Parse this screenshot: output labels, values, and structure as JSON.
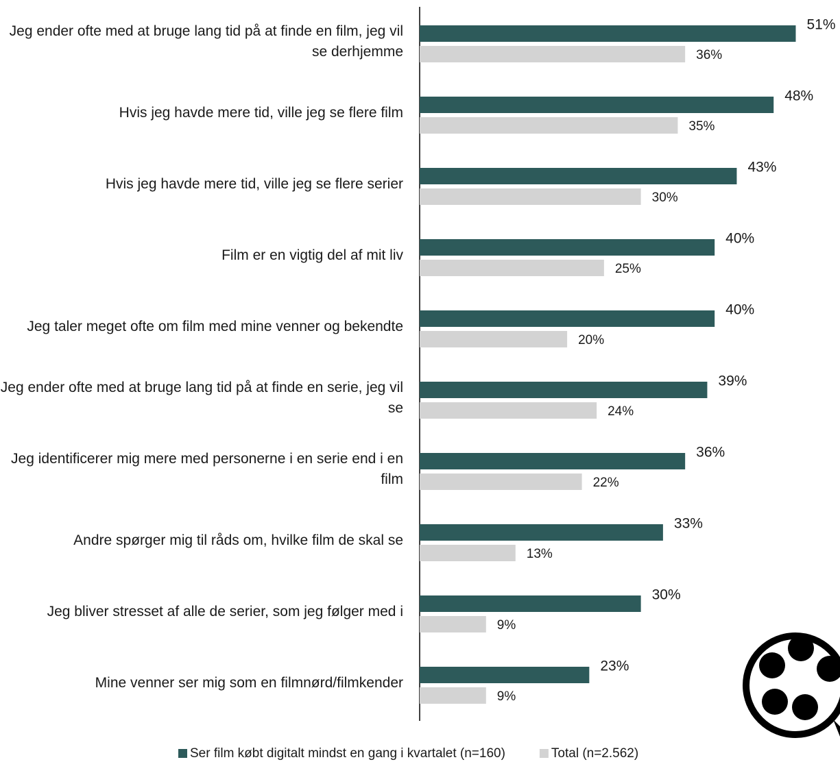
{
  "chart_data": {
    "type": "hbar",
    "categories": [
      "Jeg ender ofte med at bruge lang tid på at finde en film, jeg vil se derhjemme",
      "Hvis jeg havde mere tid, ville jeg se flere film",
      "Hvis jeg havde mere tid, ville jeg se flere serier",
      "Film er en vigtig del af mit liv",
      "Jeg taler meget ofte om film med mine venner og bekendte",
      "Jeg ender ofte med at bruge lang tid på at finde en serie, jeg vil se",
      "Jeg identificerer mig mere med personerne i en serie end i en film",
      "Andre spørger mig til råds om, hvilke film de skal se",
      "Jeg bliver stresset af alle de serier, som jeg følger med i",
      "Mine venner ser mig som en filmnørd/filmkender"
    ],
    "series": [
      {
        "name": "Ser film købt digitalt mindst en gang i kvartalet (n=160)",
        "color": "#2d5a5a",
        "values": [
          51,
          48,
          43,
          40,
          40,
          39,
          36,
          33,
          30,
          23
        ],
        "value_labels": [
          "51%",
          "48%",
          "43%",
          "40%",
          "40%",
          "39%",
          "36%",
          "33%",
          "30%",
          "23%"
        ]
      },
      {
        "name": "Total (n=2.562)",
        "color": "#d3d3d3",
        "values": [
          36,
          35,
          30,
          25,
          20,
          24,
          22,
          13,
          9,
          9
        ],
        "value_labels": [
          "36%",
          "35%",
          "30%",
          "25%",
          "20%",
          "24%",
          "22%",
          "13%",
          "9%",
          "9%"
        ]
      }
    ],
    "xlim": [
      0,
      57
    ]
  }
}
